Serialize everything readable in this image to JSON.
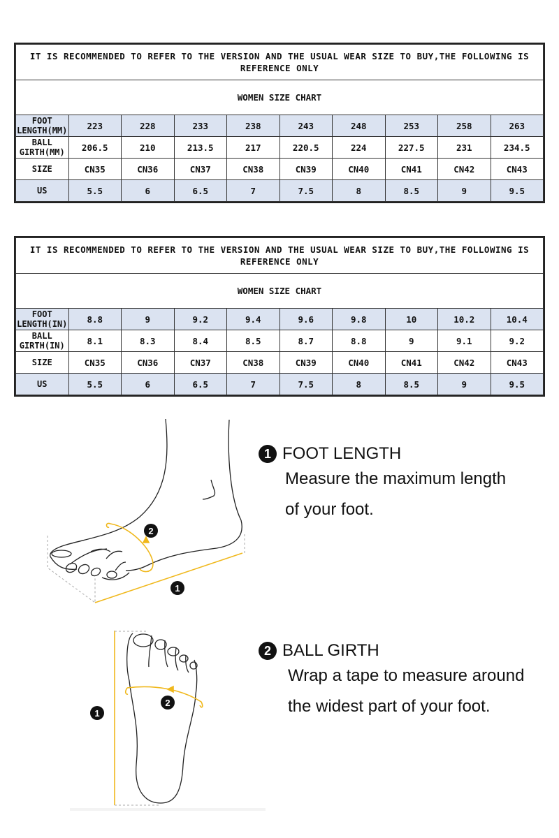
{
  "charts": [
    {
      "note": "IT IS RECOMMENDED TO REFER TO THE VERSION AND THE USUAL WEAR SIZE TO BUY,THE FOLLOWING IS REFERENCE ONLY",
      "title": "WOMEN SIZE CHART",
      "rows": [
        {
          "label": "FOOT LENGTH(MM)",
          "highlight": true,
          "values": [
            "223",
            "228",
            "233",
            "238",
            "243",
            "248",
            "253",
            "258",
            "263"
          ]
        },
        {
          "label": "BALL GIRTH(MM)",
          "highlight": false,
          "values": [
            "206.5",
            "210",
            "213.5",
            "217",
            "220.5",
            "224",
            "227.5",
            "231",
            "234.5"
          ]
        },
        {
          "label": "SIZE",
          "highlight": false,
          "values": [
            "CN35",
            "CN36",
            "CN37",
            "CN38",
            "CN39",
            "CN40",
            "CN41",
            "CN42",
            "CN43"
          ]
        },
        {
          "label": "US",
          "highlight": true,
          "values": [
            "5.5",
            "6",
            "6.5",
            "7",
            "7.5",
            "8",
            "8.5",
            "9",
            "9.5"
          ]
        }
      ]
    },
    {
      "note": "IT IS RECOMMENDED TO REFER TO THE VERSION AND THE USUAL WEAR SIZE TO BUY,THE FOLLOWING IS REFERENCE ONLY",
      "title": "WOMEN SIZE CHART",
      "rows": [
        {
          "label": "FOOT LENGTH(IN)",
          "highlight": true,
          "values": [
            "8.8",
            "9",
            "9.2",
            "9.4",
            "9.6",
            "9.8",
            "10",
            "10.2",
            "10.4"
          ]
        },
        {
          "label": "BALL GIRTH(IN)",
          "highlight": false,
          "values": [
            "8.1",
            "8.3",
            "8.4",
            "8.5",
            "8.7",
            "8.8",
            "9",
            "9.1",
            "9.2"
          ]
        },
        {
          "label": "SIZE",
          "highlight": false,
          "values": [
            "CN35",
            "CN36",
            "CN37",
            "CN38",
            "CN39",
            "CN40",
            "CN41",
            "CN42",
            "CN43"
          ]
        },
        {
          "label": "US",
          "highlight": true,
          "values": [
            "5.5",
            "6",
            "6.5",
            "7",
            "7.5",
            "8",
            "8.5",
            "9",
            "9.5"
          ]
        }
      ]
    }
  ],
  "steps": [
    {
      "number": "1",
      "title": "FOOT LENGTH",
      "desc_lines": [
        "Measure the maximum length",
        "of your foot."
      ]
    },
    {
      "number": "2",
      "title": "BALL GIRTH",
      "desc_lines": [
        "Wrap a tape to measure around",
        "the widest part of your foot."
      ]
    }
  ],
  "illustration_badges": {
    "length": "1",
    "girth": "2"
  },
  "colors": {
    "highlight_row": "#dbe3f1",
    "measure_line": "#f0b81c",
    "badge": "#111111"
  }
}
